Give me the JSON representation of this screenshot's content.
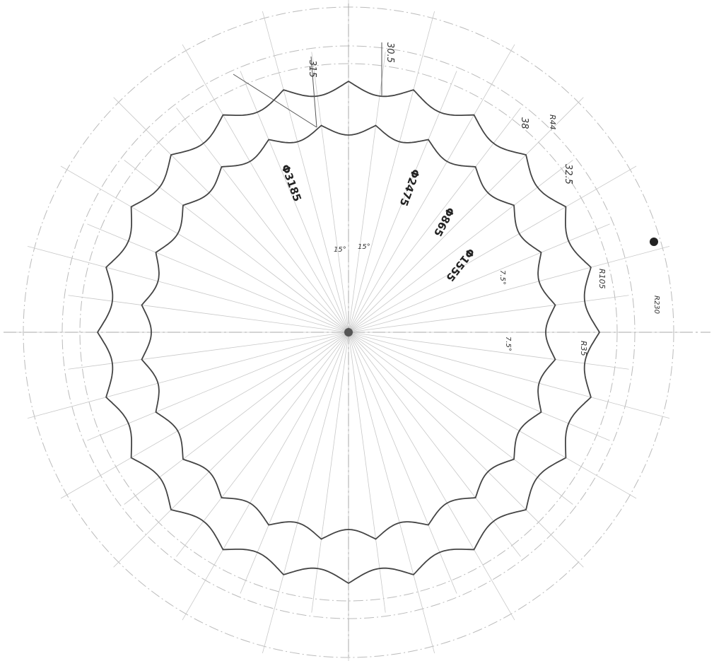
{
  "labels": [
    "30.5",
    "315",
    "Φ3185",
    "Φ2475",
    "Φ865",
    "Φ1555",
    "15°",
    "15°",
    "38",
    "R44",
    "32.5",
    "R105",
    "R230",
    "R35",
    "7.5°",
    "7.5°"
  ]
}
